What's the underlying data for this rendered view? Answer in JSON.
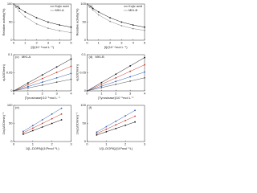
{
  "chart_data": [
    {
      "type": "line",
      "label": "(a)",
      "x_label": "[I]/(10⁻⁴mol L⁻¹)",
      "y_label": "Relative activity(%)",
      "x": [
        0,
        0.5,
        1,
        2,
        3,
        4,
        5
      ],
      "xlim": [
        0,
        5
      ],
      "xticks": [
        0,
        1,
        2,
        3,
        4,
        5
      ],
      "ylim": [
        0,
        100
      ],
      "yticks": [
        0,
        50,
        100
      ],
      "series": [
        {
          "name": "Kojic acid",
          "color": "#111111",
          "values": [
            100,
            88,
            78,
            62,
            50,
            42,
            36
          ]
        },
        {
          "name": "MKI-A",
          "color": "#888888",
          "values": [
            100,
            80,
            65,
            45,
            33,
            26,
            21
          ]
        }
      ]
    },
    {
      "type": "line",
      "label": "(b)",
      "x_label": "[I]/(10⁻⁴mol L⁻¹)",
      "y_label": "Relative activity(%)",
      "x": [
        0,
        0.5,
        1,
        2,
        3,
        4,
        5
      ],
      "xlim": [
        0,
        5
      ],
      "xticks": [
        0,
        1,
        2,
        3,
        4,
        5
      ],
      "ylim": [
        0,
        100
      ],
      "yticks": [
        0,
        50,
        100
      ],
      "series": [
        {
          "name": "Kojic acid",
          "color": "#111111",
          "values": [
            100,
            88,
            78,
            62,
            50,
            42,
            36
          ]
        },
        {
          "name": "MKI-B",
          "color": "#888888",
          "values": [
            100,
            84,
            70,
            52,
            40,
            32,
            27
          ]
        }
      ]
    },
    {
      "type": "line",
      "label": "(c)",
      "annotation": "MKI-A",
      "x_label": "[Tyrosinase]/10⁻⁶mol L⁻¹",
      "y_label": "v(ΔOD/min)",
      "x": [
        0,
        1,
        2,
        3,
        4
      ],
      "xlim": [
        0,
        4
      ],
      "xticks": [
        0,
        1,
        2,
        3,
        4
      ],
      "ylim": [
        0,
        0.1
      ],
      "yticks": [
        0,
        0.05,
        0.1
      ],
      "series": [
        {
          "color": "#111111",
          "values": [
            0,
            0.022,
            0.044,
            0.066,
            0.088
          ]
        },
        {
          "color": "#c0392b",
          "values": [
            0,
            0.017,
            0.034,
            0.051,
            0.068
          ]
        },
        {
          "color": "#2e5fb0",
          "values": [
            0,
            0.012,
            0.024,
            0.036,
            0.048
          ]
        },
        {
          "color": "#555555",
          "values": [
            0,
            0.008,
            0.016,
            0.024,
            0.032
          ]
        }
      ]
    },
    {
      "type": "line",
      "label": "(d)",
      "annotation": "MKI-B",
      "x_label": "[Tyrosinase]/10⁻⁶mol L⁻¹",
      "y_label": "v(ΔOD/min)",
      "x": [
        0,
        1,
        2,
        3,
        4
      ],
      "xlim": [
        0,
        4
      ],
      "xticks": [
        0,
        1,
        2,
        3,
        4
      ],
      "ylim": [
        0,
        0.1
      ],
      "yticks": [
        0,
        0.05,
        0.1
      ],
      "series": [
        {
          "color": "#111111",
          "values": [
            0,
            0.023,
            0.046,
            0.069,
            0.092
          ]
        },
        {
          "color": "#c0392b",
          "values": [
            0,
            0.018,
            0.036,
            0.054,
            0.072
          ]
        },
        {
          "color": "#2e5fb0",
          "values": [
            0,
            0.013,
            0.026,
            0.039,
            0.052
          ]
        },
        {
          "color": "#555555",
          "values": [
            0,
            0.009,
            0.018,
            0.027,
            0.036
          ]
        }
      ]
    },
    {
      "type": "line",
      "label": "(e)",
      "x_label": "1/[L-DOPA]/(10³mol⁻¹L)",
      "y_label": "1/v(ΔOD/min)⁻¹",
      "x": [
        0.5,
        1,
        1.5,
        2,
        2.5
      ],
      "xlim": [
        0,
        3
      ],
      "xticks": [
        0,
        1,
        2,
        3
      ],
      "ylim": [
        0,
        100
      ],
      "yticks": [
        0,
        50,
        100
      ],
      "series": [
        {
          "color": "#111111",
          "values": [
            20,
            30,
            40,
            50,
            60
          ]
        },
        {
          "color": "#c0392b",
          "values": [
            24,
            37,
            50,
            63,
            76
          ]
        },
        {
          "color": "#2e5fb0",
          "values": [
            28,
            44,
            60,
            76,
            92
          ]
        }
      ]
    },
    {
      "type": "line",
      "label": "(f)",
      "x_label": "1/[L-DOPA]/(10³mol⁻¹L)",
      "y_label": "1/v(ΔOD/min)⁻¹",
      "x": [
        0.5,
        1,
        1.5,
        2,
        2.5
      ],
      "xlim": [
        0,
        3
      ],
      "xticks": [
        0,
        1,
        2,
        3
      ],
      "ylim": [
        0,
        100
      ],
      "yticks": [
        0,
        50,
        100
      ],
      "series": [
        {
          "color": "#111111",
          "values": [
            18,
            27,
            36,
            45,
            54
          ]
        },
        {
          "color": "#c0392b",
          "values": [
            22,
            34,
            46,
            58,
            70
          ]
        },
        {
          "color": "#2e5fb0",
          "values": [
            26,
            41,
            56,
            71,
            86
          ]
        }
      ]
    }
  ]
}
